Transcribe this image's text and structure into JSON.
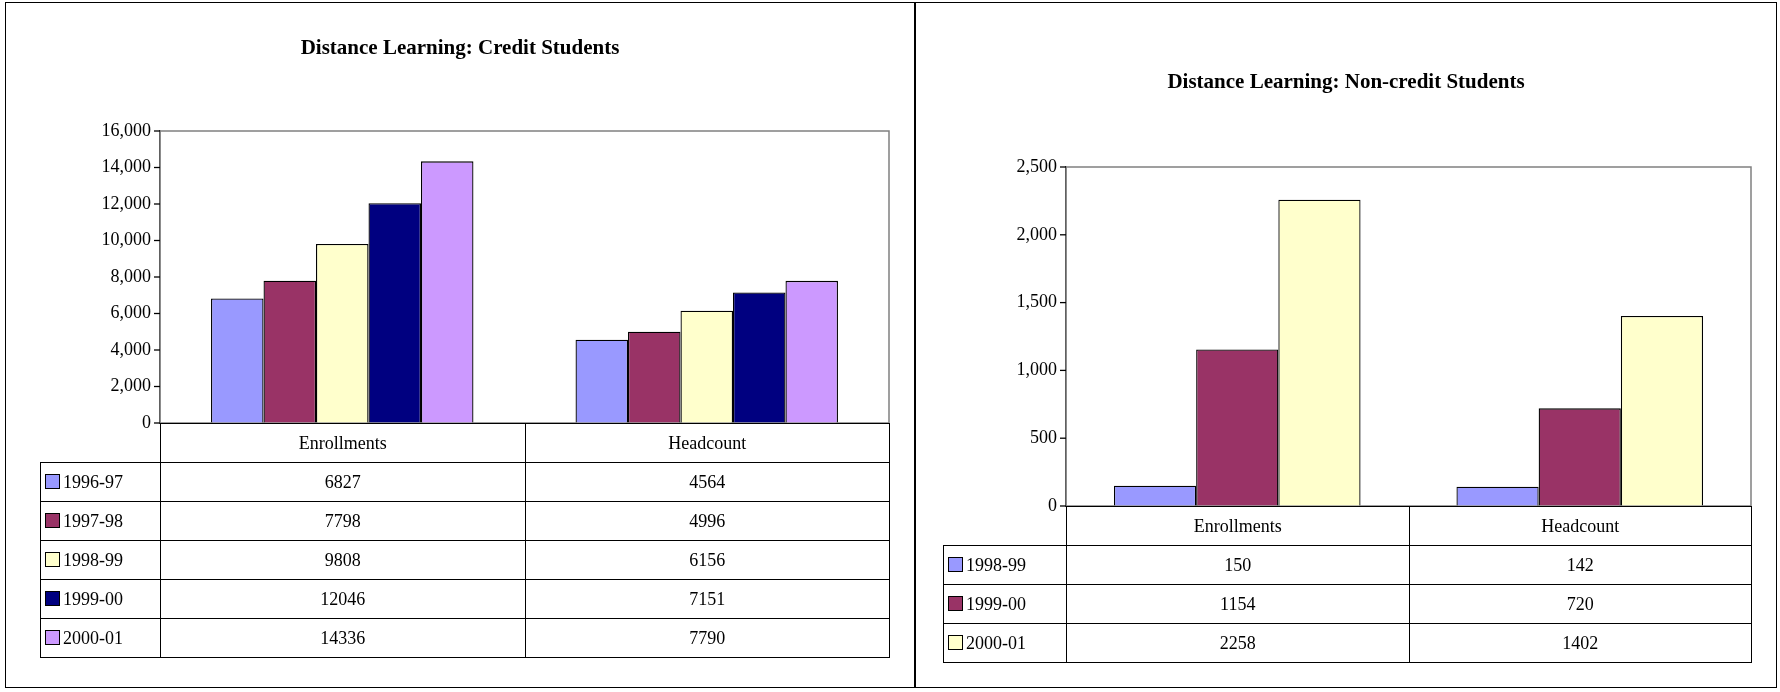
{
  "chart_data": [
    {
      "type": "bar",
      "title": "Distance Learning:  Credit Students",
      "categories": [
        "Enrollments",
        "Headcount"
      ],
      "series": [
        {
          "name": "1996-97",
          "color": "#9999ff",
          "values": [
            6827,
            4564
          ]
        },
        {
          "name": "1997-98",
          "color": "#993366",
          "values": [
            7798,
            4996
          ]
        },
        {
          "name": "1998-99",
          "color": "#ffffcc",
          "values": [
            9808,
            6156
          ]
        },
        {
          "name": "1999-00",
          "color": "#000080",
          "values": [
            12046,
            7151
          ]
        },
        {
          "name": "2000-01",
          "color": "#cc99ff",
          "values": [
            14336,
            7790
          ]
        }
      ],
      "ylim": [
        0,
        16000
      ],
      "yticks": [
        {
          "value": 0,
          "label": "0"
        },
        {
          "value": 2000,
          "label": "2,000"
        },
        {
          "value": 4000,
          "label": "4,000"
        },
        {
          "value": 6000,
          "label": "6,000"
        },
        {
          "value": 8000,
          "label": "8,000"
        },
        {
          "value": 10000,
          "label": "10,000"
        },
        {
          "value": 12000,
          "label": "12,000"
        },
        {
          "value": 14000,
          "label": "14,000"
        },
        {
          "value": 16000,
          "label": "16,000"
        }
      ],
      "grid": false,
      "legend": "bottom",
      "data_labels": true
    },
    {
      "type": "bar",
      "title": "Distance Learning:  Non-credit Students",
      "categories": [
        "Enrollments",
        "Headcount"
      ],
      "series": [
        {
          "name": "1998-99",
          "color": "#9999ff",
          "values": [
            150,
            142
          ]
        },
        {
          "name": "1999-00",
          "color": "#993366",
          "values": [
            1154,
            720
          ]
        },
        {
          "name": "2000-01",
          "color": "#ffffcc",
          "values": [
            2258,
            1402
          ]
        }
      ],
      "ylim": [
        0,
        2500
      ],
      "yticks": [
        {
          "value": 0,
          "label": "0"
        },
        {
          "value": 500,
          "label": "500"
        },
        {
          "value": 1000,
          "label": "1,000"
        },
        {
          "value": 1500,
          "label": "1,500"
        },
        {
          "value": 2000,
          "label": "2,000"
        },
        {
          "value": 2500,
          "label": "2,500"
        }
      ],
      "grid": false,
      "legend": "bottom",
      "data_labels": true
    }
  ]
}
